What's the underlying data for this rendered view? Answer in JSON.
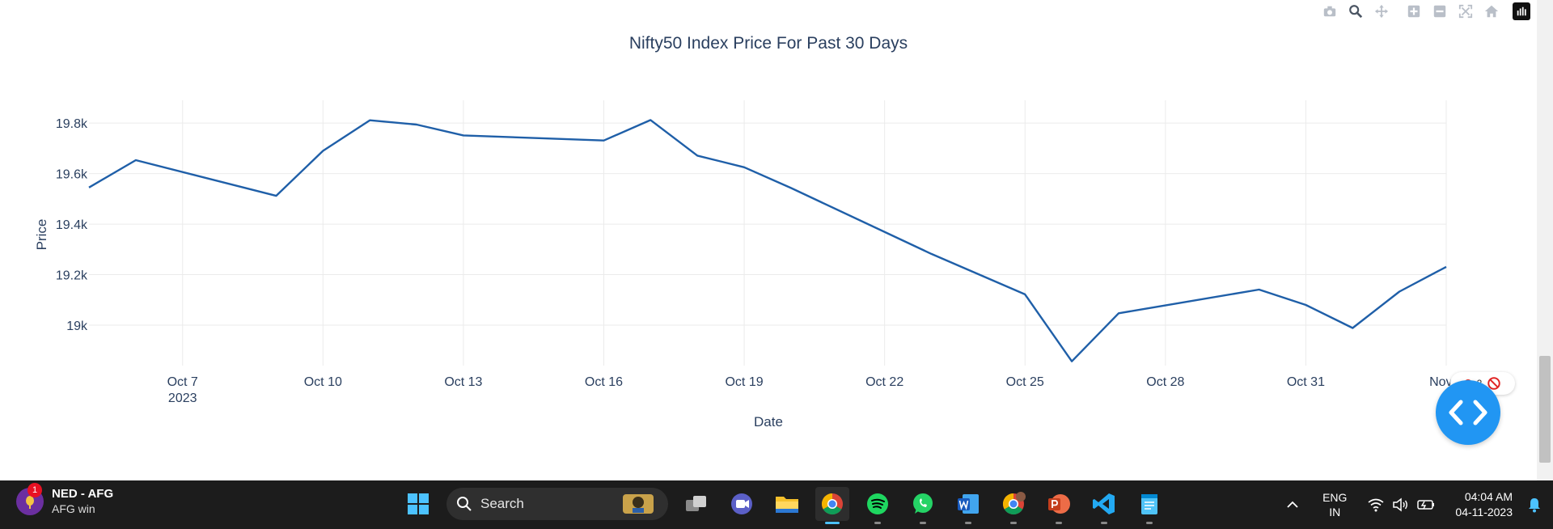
{
  "chart_data": {
    "type": "line",
    "title": "Nifty50 Index Price For Past 30 Days",
    "xlabel": "Date",
    "ylabel": "Price",
    "ylim": [
      18840,
      19890
    ],
    "y_ticks": [
      {
        "value": 19000,
        "label": "19k"
      },
      {
        "value": 19200,
        "label": "19.2k"
      },
      {
        "value": 19400,
        "label": "19.4k"
      },
      {
        "value": 19600,
        "label": "19.6k"
      },
      {
        "value": 19800,
        "label": "19.8k"
      }
    ],
    "x_ticks": [
      {
        "day": 7,
        "label": "Oct 7",
        "sublabel": "2023"
      },
      {
        "day": 10,
        "label": "Oct 10"
      },
      {
        "day": 13,
        "label": "Oct 13"
      },
      {
        "day": 16,
        "label": "Oct 16"
      },
      {
        "day": 19,
        "label": "Oct 19"
      },
      {
        "day": 22,
        "label": "Oct 22"
      },
      {
        "day": 25,
        "label": "Oct 25"
      },
      {
        "day": 28,
        "label": "Oct 28"
      },
      {
        "day": 31,
        "label": "Oct 31"
      },
      {
        "day": 34,
        "label": "Nov 3"
      }
    ],
    "x_range_days": [
      5,
      34
    ],
    "grid": true,
    "series": [
      {
        "color": "#1f5fa8",
        "x": [
          "2023-10-05",
          "2023-10-06",
          "2023-10-09",
          "2023-10-10",
          "2023-10-11",
          "2023-10-12",
          "2023-10-13",
          "2023-10-16",
          "2023-10-17",
          "2023-10-18",
          "2023-10-19",
          "2023-10-20",
          "2023-10-23",
          "2023-10-25",
          "2023-10-26",
          "2023-10-27",
          "2023-10-30",
          "2023-10-31",
          "2023-11-01",
          "2023-11-02",
          "2023-11-03"
        ],
        "x_day": [
          5,
          6,
          9,
          10,
          11,
          12,
          13,
          16,
          17,
          18,
          19,
          20,
          23,
          25,
          26,
          27,
          30,
          31,
          32,
          33,
          34
        ],
        "y": [
          19545,
          19653,
          19512,
          19690,
          19811,
          19794,
          19751,
          19731,
          19812,
          19671,
          19625,
          19543,
          19282,
          19122,
          18857,
          19047,
          19141,
          19080,
          18989,
          19133,
          19231
        ]
      }
    ]
  },
  "modebar": {
    "icons": [
      "camera-icon",
      "zoom-icon",
      "pan-icon",
      "zoom-in-icon",
      "zoom-out-icon",
      "autoscale-icon",
      "home-icon",
      "plotly-logo-icon"
    ]
  },
  "overlay": {
    "badge_count": "2"
  },
  "taskbar": {
    "weather_title": "NED - AFG",
    "weather_sub": "AFG win",
    "weather_badge": "1",
    "search_label": "Search",
    "lang_line1": "ENG",
    "lang_line2": "IN",
    "time": "04:04 AM",
    "date": "04-11-2023"
  }
}
